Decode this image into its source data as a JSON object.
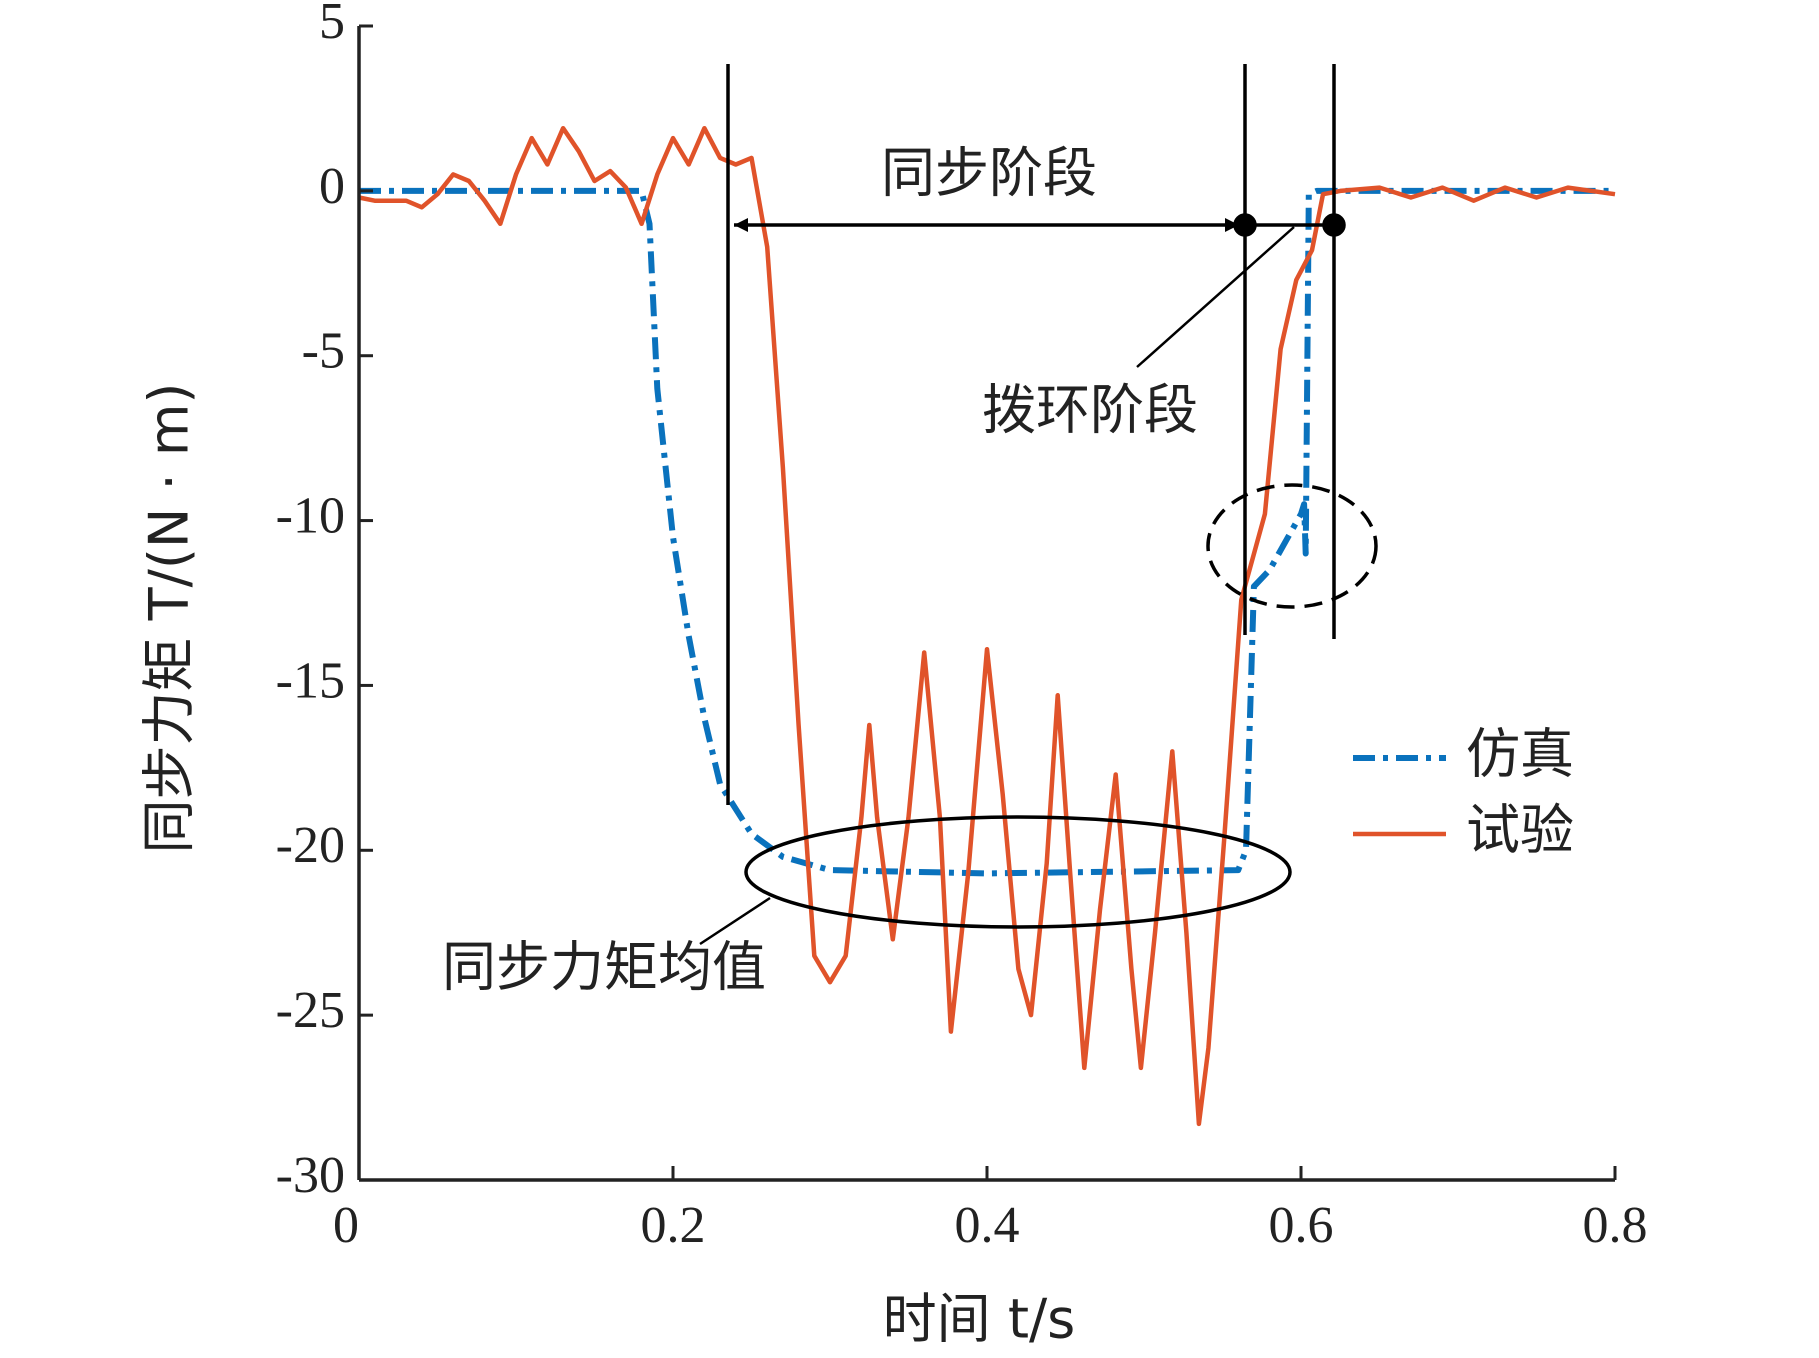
{
  "chart_data": {
    "type": "line",
    "xlabel": "时间 t/s",
    "ylabel": "同步力矩 T/(N · m)",
    "xlim": [
      0,
      0.8
    ],
    "ylim": [
      -30,
      5
    ],
    "xticks": [
      0,
      0.2,
      0.4,
      0.6,
      0.8
    ],
    "yticks": [
      5,
      0,
      -5,
      -10,
      -15,
      -20,
      -25,
      -30
    ],
    "legend": "right",
    "annotations": [
      "同步阶段",
      "拨环阶段",
      "同步力矩均值"
    ],
    "series": [
      {
        "name": "仿真",
        "color": "#0a72bd",
        "dash": true,
        "x": [
          0,
          0.18,
          0.185,
          0.19,
          0.2,
          0.21,
          0.22,
          0.23,
          0.25,
          0.27,
          0.3,
          0.4,
          0.56,
          0.565,
          0.57,
          0.58,
          0.6,
          0.602,
          0.603,
          0.605,
          0.61,
          0.8
        ],
        "values": [
          0,
          0,
          -1,
          -6,
          -10.5,
          -13.5,
          -16,
          -18,
          -19.5,
          -20.2,
          -20.6,
          -20.7,
          -20.6,
          -20,
          -12,
          -11.5,
          -9.8,
          -9.5,
          -11,
          -0.1,
          0,
          0
        ]
      },
      {
        "name": "试验",
        "color": "#e0532a",
        "dash": false,
        "x": [
          0,
          0.01,
          0.03,
          0.04,
          0.05,
          0.06,
          0.07,
          0.08,
          0.09,
          0.1,
          0.11,
          0.12,
          0.13,
          0.14,
          0.15,
          0.16,
          0.17,
          0.18,
          0.19,
          0.2,
          0.21,
          0.22,
          0.23,
          0.24,
          0.25,
          0.26,
          0.27,
          0.28,
          0.29,
          0.3,
          0.31,
          0.32,
          0.325,
          0.33,
          0.34,
          0.35,
          0.36,
          0.37,
          0.377,
          0.388,
          0.4,
          0.41,
          0.42,
          0.428,
          0.438,
          0.445,
          0.453,
          0.462,
          0.472,
          0.482,
          0.492,
          0.498,
          0.507,
          0.518,
          0.527,
          0.535,
          0.541,
          0.551,
          0.562,
          0.577,
          0.587,
          0.597,
          0.607,
          0.614,
          0.625,
          0.65,
          0.67,
          0.69,
          0.71,
          0.73,
          0.75,
          0.77,
          0.8
        ],
        "values": [
          -0.2,
          -0.3,
          -0.3,
          -0.5,
          -0.1,
          0.5,
          0.3,
          -0.3,
          -1.0,
          0.5,
          1.6,
          0.8,
          1.9,
          1.2,
          0.3,
          0.6,
          0.1,
          -1.0,
          0.5,
          1.6,
          0.8,
          1.9,
          1.0,
          0.8,
          1.0,
          -1.7,
          -8.4,
          -16.2,
          -23.2,
          -24,
          -23.2,
          -19,
          -16.2,
          -19,
          -22.7,
          -19,
          -14,
          -19,
          -25.5,
          -20.7,
          -13.9,
          -18.3,
          -23.6,
          -25,
          -20.4,
          -15.3,
          -20.7,
          -26.6,
          -21.8,
          -17.7,
          -23.6,
          -26.6,
          -22.5,
          -17,
          -22.5,
          -28.3,
          -26,
          -19.7,
          -12.4,
          -9.8,
          -4.8,
          -2.7,
          -1.8,
          -0.1,
          0,
          0.1,
          -0.2,
          0.1,
          -0.3,
          0.1,
          -0.2,
          0.1,
          -0.1
        ]
      }
    ]
  }
}
